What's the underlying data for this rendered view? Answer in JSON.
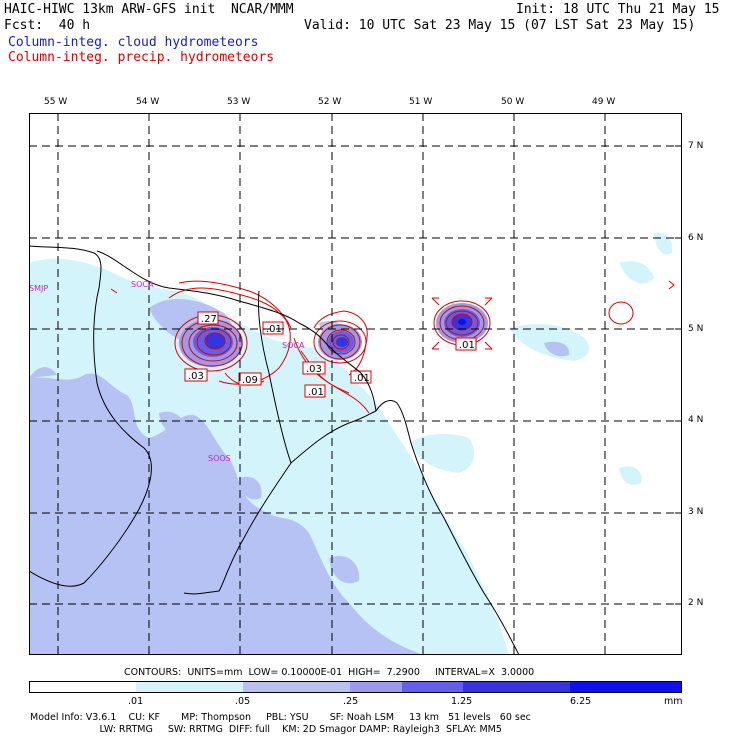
{
  "header": {
    "model_title": "HAIC-HIWC 13km ARW-GFS init  NCAR/MMM",
    "init_time": "Init: 18 UTC Thu 21 May 15",
    "forecast_hour": "Fcst:  40 h",
    "valid_time": "Valid: 10 UTC Sat 23 May 15 (07 LST Sat 23 May 15)",
    "field_shaded": "Column-integ. cloud hydrometeors",
    "field_contour": "Column-integ. precip. hydrometeors"
  },
  "map": {
    "lon_labels": [
      "55 W",
      "54 W",
      "53 W",
      "52 W",
      "51 W",
      "50 W",
      "49 W"
    ],
    "lat_labels": [
      "7 N",
      "6 N",
      "5 N",
      "4 N",
      "3 N",
      "2 N"
    ],
    "stations": [
      "SMJP",
      "SOCA",
      "SOCA",
      "SOOS"
    ],
    "contour_labels": [
      ".27",
      ".01",
      ".03",
      ".09",
      ".03",
      ".01",
      ".01",
      ".01"
    ]
  },
  "contour_info": "CONTOURS:  UNITS=mm  LOW= 0.10000E-01  HIGH=  7.2900     INTERVAL=X  3.0000",
  "colorbar": {
    "thresholds": [
      ".01",
      ".05",
      ".25",
      "1.25",
      "6.25"
    ],
    "units": "mm",
    "colors": [
      "#ffffff",
      "#d4f4fc",
      "#b6c1f4",
      "#9b9bec",
      "#6060ea",
      "#3434e0",
      "#1010e8"
    ]
  },
  "model_info": {
    "line1": "Model Info: V3.6.1    CU: KF       MP: Thompson     PBL: YSU       SF: Noah LSM     13 km   51 levels   60 sec",
    "line2": "                       LW: RRTMG     SW: RRTMG  DIFF: full    KM: 2D Smagor DAMP: Rayleigh3  SFLAY: MM5"
  },
  "colors": {
    "title_text": "#000000",
    "cloud_label": "#1a1ad0",
    "precip_label": "#e00000",
    "contour_line": "#e00000",
    "station_label": "#d020d0",
    "coast_line": "#000000",
    "grid_line": "#000000"
  }
}
